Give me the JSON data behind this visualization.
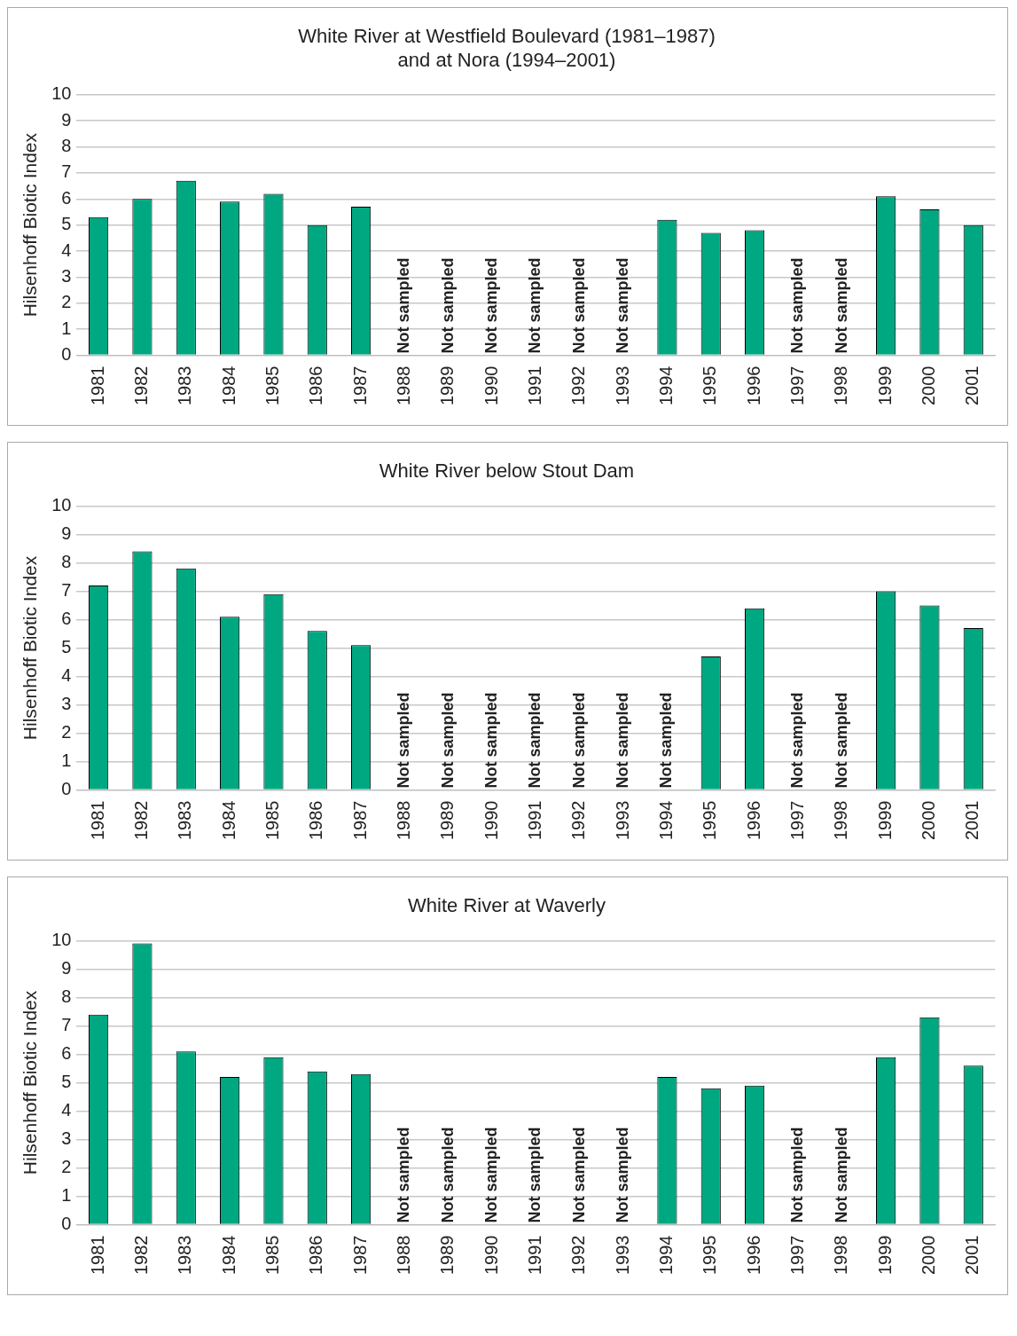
{
  "chart_data": [
    {
      "type": "bar",
      "title": "White River at Westfield Boulevard (1981–1987)\nand at Nora (1994–2001)",
      "ylabel": "Hilsenhoff Biotic Index",
      "categories": [
        "1981",
        "1982",
        "1983",
        "1984",
        "1985",
        "1986",
        "1987",
        "1988",
        "1989",
        "1990",
        "1991",
        "1992",
        "1993",
        "1994",
        "1995",
        "1996",
        "1997",
        "1998",
        "1999",
        "2000",
        "2001"
      ],
      "values": [
        5.3,
        6.0,
        6.7,
        5.9,
        6.2,
        5.0,
        5.7,
        null,
        null,
        null,
        null,
        null,
        null,
        5.2,
        4.7,
        4.8,
        null,
        null,
        6.1,
        5.6,
        5.0
      ],
      "value_labels": [
        null,
        null,
        null,
        null,
        null,
        null,
        null,
        "Not sampled",
        "Not sampled",
        "Not sampled",
        "Not sampled",
        "Not sampled",
        "Not sampled",
        null,
        null,
        null,
        "Not sampled",
        "Not sampled",
        null,
        null,
        null
      ],
      "color": "#00a881",
      "ylim": [
        0,
        10
      ],
      "yticks": [
        0,
        1,
        2,
        3,
        4,
        5,
        6,
        7,
        8,
        9,
        10
      ],
      "grid": "y",
      "legend": false
    },
    {
      "type": "bar",
      "title": "White River below Stout Dam",
      "ylabel": "Hilsenhoff Biotic Index",
      "categories": [
        "1981",
        "1982",
        "1983",
        "1984",
        "1985",
        "1986",
        "1987",
        "1988",
        "1989",
        "1990",
        "1991",
        "1992",
        "1993",
        "1994",
        "1995",
        "1996",
        "1997",
        "1998",
        "1999",
        "2000",
        "2001"
      ],
      "values": [
        7.2,
        8.4,
        7.8,
        6.1,
        6.9,
        5.6,
        5.1,
        null,
        null,
        null,
        null,
        null,
        null,
        null,
        4.7,
        6.4,
        null,
        null,
        7.0,
        6.5,
        5.7
      ],
      "value_labels": [
        null,
        null,
        null,
        null,
        null,
        null,
        null,
        "Not sampled",
        "Not sampled",
        "Not sampled",
        "Not sampled",
        "Not sampled",
        "Not sampled",
        "Not sampled",
        null,
        null,
        "Not sampled",
        "Not sampled",
        null,
        null,
        null
      ],
      "color": "#00a881",
      "ylim": [
        0,
        10
      ],
      "yticks": [
        0,
        1,
        2,
        3,
        4,
        5,
        6,
        7,
        8,
        9,
        10
      ],
      "grid": "y",
      "legend": false
    },
    {
      "type": "bar",
      "title": "White River at Waverly",
      "ylabel": "Hilsenhoff Biotic Index",
      "categories": [
        "1981",
        "1982",
        "1983",
        "1984",
        "1985",
        "1986",
        "1987",
        "1988",
        "1989",
        "1990",
        "1991",
        "1992",
        "1993",
        "1994",
        "1995",
        "1996",
        "1997",
        "1998",
        "1999",
        "2000",
        "2001"
      ],
      "values": [
        7.4,
        9.9,
        6.1,
        5.2,
        5.9,
        5.4,
        5.3,
        null,
        null,
        null,
        null,
        null,
        null,
        5.2,
        4.8,
        4.9,
        null,
        null,
        5.9,
        7.3,
        5.6
      ],
      "value_labels": [
        null,
        null,
        null,
        null,
        null,
        null,
        null,
        "Not sampled",
        "Not sampled",
        "Not sampled",
        "Not sampled",
        "Not sampled",
        "Not sampled",
        null,
        null,
        null,
        "Not sampled",
        "Not sampled",
        null,
        null,
        null
      ],
      "color": "#00a881",
      "ylim": [
        0,
        10
      ],
      "yticks": [
        0,
        1,
        2,
        3,
        4,
        5,
        6,
        7,
        8,
        9,
        10
      ],
      "grid": "y",
      "legend": false
    }
  ]
}
